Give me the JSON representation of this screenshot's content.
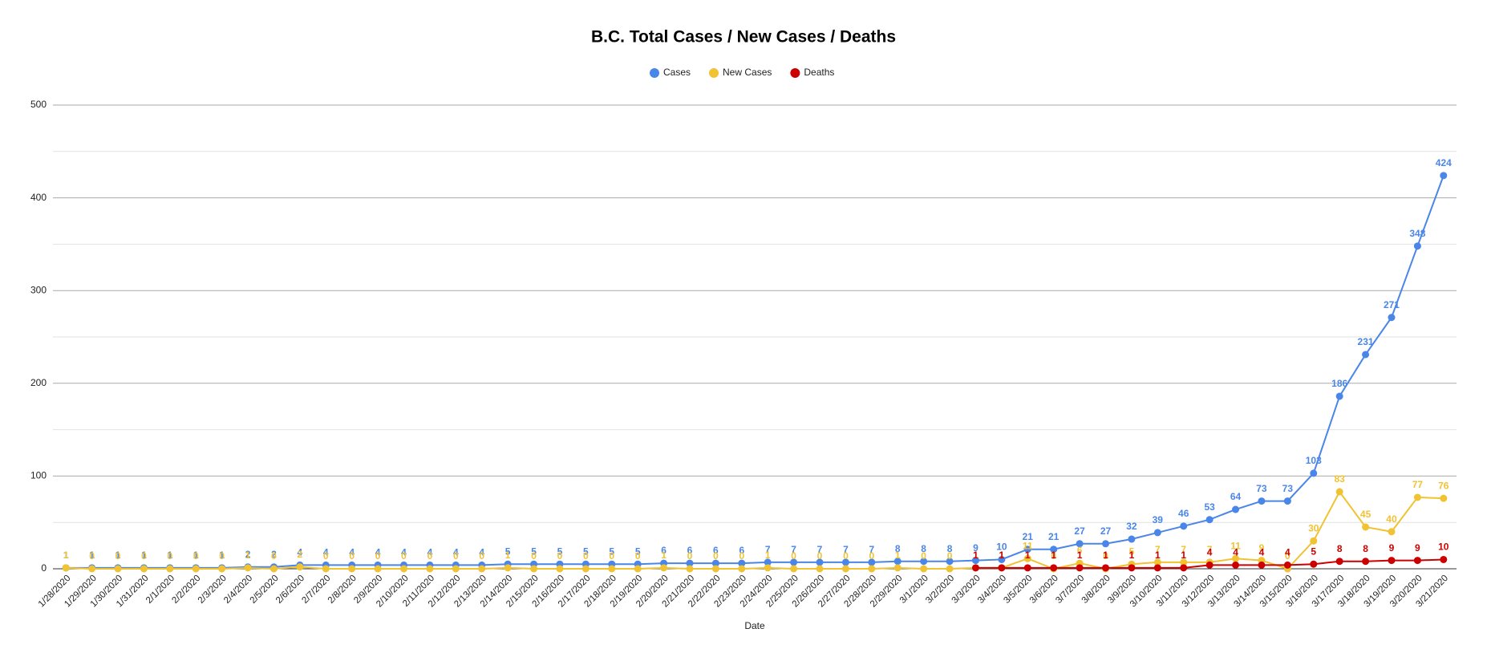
{
  "chart_data": {
    "type": "line",
    "title": "B.C. Total Cases / New Cases / Deaths",
    "x_label": "Date",
    "categories": [
      "1/28/2020",
      "1/29/2020",
      "1/30/2020",
      "1/31/2020",
      "2/1/2020",
      "2/2/2020",
      "2/3/2020",
      "2/4/2020",
      "2/5/2020",
      "2/6/2020",
      "2/7/2020",
      "2/8/2020",
      "2/9/2020",
      "2/10/2020",
      "2/11/2020",
      "2/12/2020",
      "2/13/2020",
      "2/14/2020",
      "2/15/2020",
      "2/16/2020",
      "2/17/2020",
      "2/18/2020",
      "2/19/2020",
      "2/20/2020",
      "2/21/2020",
      "2/22/2020",
      "2/23/2020",
      "2/24/2020",
      "2/25/2020",
      "2/26/2020",
      "2/27/2020",
      "2/28/2020",
      "2/29/2020",
      "3/1/2020",
      "3/2/2020",
      "3/3/2020",
      "3/4/2020",
      "3/5/2020",
      "3/6/2020",
      "3/7/2020",
      "3/8/2020",
      "3/9/2020",
      "3/10/2020",
      "3/11/2020",
      "3/12/2020",
      "3/13/2020",
      "3/14/2020",
      "3/15/2020",
      "3/16/2020",
      "3/17/2020",
      "3/18/2020",
      "3/19/2020",
      "3/20/2020",
      "3/21/2020"
    ],
    "series": [
      {
        "name": "Cases",
        "color": "#4a86e8",
        "values": [
          1,
          1,
          1,
          1,
          1,
          1,
          1,
          2,
          2,
          4,
          4,
          4,
          4,
          4,
          4,
          4,
          4,
          5,
          5,
          5,
          5,
          5,
          5,
          6,
          6,
          6,
          6,
          7,
          7,
          7,
          7,
          7,
          8,
          8,
          8,
          9,
          10,
          21,
          21,
          27,
          27,
          32,
          39,
          46,
          53,
          64,
          73,
          73,
          103,
          186,
          231,
          271,
          348,
          424
        ]
      },
      {
        "name": "New Cases",
        "color": "#f1c232",
        "values": [
          1,
          0,
          0,
          0,
          0,
          0,
          0,
          1,
          0,
          2,
          0,
          0,
          0,
          0,
          0,
          0,
          0,
          1,
          0,
          0,
          0,
          0,
          0,
          1,
          0,
          0,
          0,
          1,
          0,
          0,
          0,
          0,
          1,
          0,
          0,
          1,
          1,
          11,
          0,
          6,
          0,
          5,
          7,
          7,
          7,
          11,
          9,
          0,
          30,
          83,
          45,
          40,
          77,
          76
        ]
      },
      {
        "name": "Deaths",
        "color": "#cc0000",
        "values": [
          null,
          null,
          null,
          null,
          null,
          null,
          null,
          null,
          null,
          null,
          null,
          null,
          null,
          null,
          null,
          null,
          null,
          null,
          null,
          null,
          null,
          null,
          null,
          null,
          null,
          null,
          null,
          null,
          null,
          null,
          null,
          null,
          null,
          null,
          null,
          1,
          1,
          1,
          1,
          1,
          1,
          1,
          1,
          1,
          4,
          4,
          4,
          4,
          5,
          8,
          8,
          9,
          9,
          10
        ]
      }
    ],
    "ylim": [
      0,
      500
    ],
    "yticks": [
      0,
      100,
      200,
      300,
      400,
      500
    ],
    "minor_yticks": [
      50,
      150,
      250,
      350,
      450
    ],
    "grid": true,
    "legend": "top"
  }
}
